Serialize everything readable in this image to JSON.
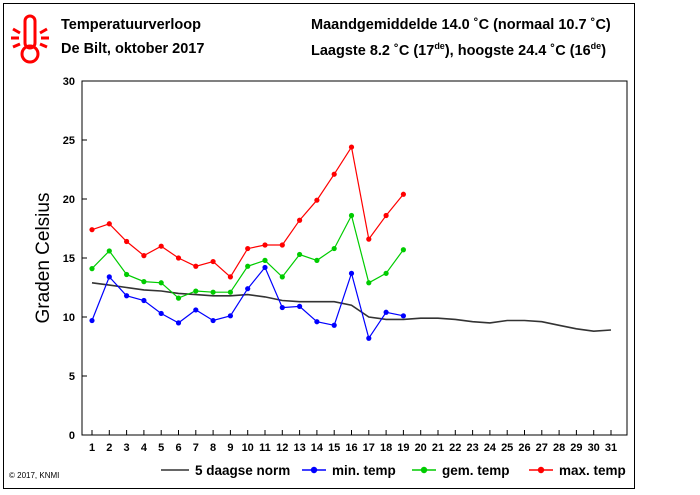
{
  "header": {
    "title": "Temperatuurverloop",
    "subtitle": "De Bilt, oktober 2017",
    "mean_line": "Maandgemiddelde 14.0 ˚C (normaal 10.7 ˚C)",
    "extremes_prefix": "Laagste 8.2 ˚C (17",
    "extremes_sup1": "de",
    "extremes_middle": "), hoogste 24.4 ˚C (16",
    "extremes_sup2": "de",
    "extremes_suffix": ")"
  },
  "copyright": "© 2017, KNMI",
  "colors": {
    "norm": "#333333",
    "min": "#0000ff",
    "mean": "#00cc00",
    "max": "#ff0000",
    "icon": "#ff0000"
  },
  "icon": "thermometer-icon",
  "chart_data": {
    "type": "line",
    "ylabel": "Graden Celsius",
    "xlim": [
      1,
      31
    ],
    "ylim": [
      0,
      30
    ],
    "x_ticks": [
      1,
      2,
      3,
      4,
      5,
      6,
      7,
      8,
      9,
      10,
      11,
      12,
      13,
      14,
      15,
      16,
      17,
      18,
      19,
      20,
      21,
      22,
      23,
      24,
      25,
      26,
      27,
      28,
      29,
      30,
      31
    ],
    "y_ticks": [
      0,
      5,
      10,
      15,
      20,
      25,
      30
    ],
    "grid": false,
    "legend_position": "bottom",
    "series": [
      {
        "name": "5 daagse norm",
        "key": "norm",
        "markers": false,
        "x": [
          1,
          2,
          3,
          4,
          5,
          6,
          7,
          8,
          9,
          10,
          11,
          12,
          13,
          14,
          15,
          16,
          17,
          18,
          19,
          20,
          21,
          22,
          23,
          24,
          25,
          26,
          27,
          28,
          29,
          30,
          31
        ],
        "values": [
          12.9,
          12.7,
          12.5,
          12.3,
          12.2,
          12.0,
          11.9,
          11.8,
          11.8,
          11.9,
          11.7,
          11.4,
          11.3,
          11.3,
          11.3,
          11.0,
          10.0,
          9.8,
          9.8,
          9.9,
          9.9,
          9.8,
          9.6,
          9.5,
          9.7,
          9.7,
          9.6,
          9.3,
          9.0,
          8.8,
          8.9
        ]
      },
      {
        "name": "min. temp",
        "key": "min",
        "markers": true,
        "x": [
          1,
          2,
          3,
          4,
          5,
          6,
          7,
          8,
          9,
          10,
          11,
          12,
          13,
          14,
          15,
          16,
          17,
          18,
          19
        ],
        "values": [
          9.7,
          13.4,
          11.8,
          11.4,
          10.3,
          9.5,
          10.6,
          9.7,
          10.1,
          12.4,
          14.2,
          10.8,
          10.9,
          9.6,
          9.3,
          13.7,
          8.2,
          10.4,
          10.1
        ]
      },
      {
        "name": "gem. temp",
        "key": "mean",
        "markers": true,
        "x": [
          1,
          2,
          3,
          4,
          5,
          6,
          7,
          8,
          9,
          10,
          11,
          12,
          13,
          14,
          15,
          16,
          17,
          18,
          19
        ],
        "values": [
          14.1,
          15.6,
          13.6,
          13.0,
          12.9,
          11.6,
          12.2,
          12.1,
          12.1,
          14.3,
          14.8,
          13.4,
          15.3,
          14.8,
          15.8,
          18.6,
          12.9,
          13.7,
          15.7
        ]
      },
      {
        "name": "max. temp",
        "key": "max",
        "markers": true,
        "x": [
          1,
          2,
          3,
          4,
          5,
          6,
          7,
          8,
          9,
          10,
          11,
          12,
          13,
          14,
          15,
          16,
          17,
          18,
          19
        ],
        "values": [
          17.4,
          17.9,
          16.4,
          15.2,
          16.0,
          15.0,
          14.3,
          14.7,
          13.4,
          15.8,
          16.1,
          16.1,
          18.2,
          19.9,
          22.1,
          24.4,
          16.6,
          18.6,
          20.4
        ]
      }
    ]
  }
}
